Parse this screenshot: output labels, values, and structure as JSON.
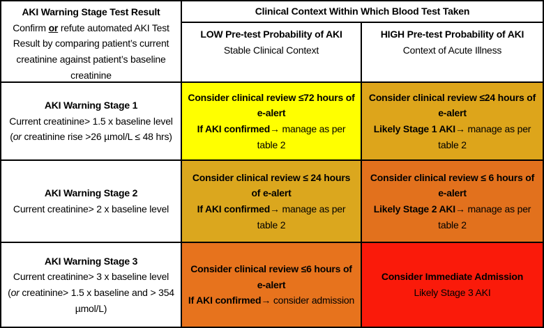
{
  "colors": {
    "border": "#000000",
    "text": "#000000",
    "header_bg": "#FFFFFF"
  },
  "header": {
    "left": {
      "title": "AKI Warning Stage Test Result",
      "desc_pre": "Confirm ",
      "desc_or": "or",
      "desc_post": " refute automated AKI Test Result by comparing patient’s current creatinine against patient’s baseline creatinine"
    },
    "context_title": "Clinical Context Within Which Blood Test Taken",
    "low": {
      "title": "LOW Pre-test Probability of AKI",
      "subtitle": "Stable Clinical Context"
    },
    "high": {
      "title": "HIGH Pre-test Probability of AKI",
      "subtitle": "Context of Acute Illness"
    }
  },
  "rows": [
    {
      "stage": {
        "title": "AKI Warning Stage 1",
        "line1": "Current creatinine> 1.5 x baseline level",
        "paren_open": "(",
        "paren_or": "or",
        "paren_rest": " creatinine rise >26 µmol/L ≤ 48 hrs)"
      },
      "low": {
        "bg": "#FFFF00",
        "line1": "Consider clinical review ≤72 hours of e-alert",
        "lead": "If AKI confirmed→",
        "rest": " manage as per table 2"
      },
      "high": {
        "bg": "#DDA51B",
        "line1": "Consider clinical review ≤24 hours of e-alert",
        "lead": "Likely Stage 1 AKI→",
        "rest": " manage as per table 2"
      }
    },
    {
      "stage": {
        "title": "AKI Warning Stage 2",
        "line1": "Current creatinine> 2 x baseline level"
      },
      "low": {
        "bg": "#DBA71E",
        "line1": "Consider clinical review ≤ 24 hours of e-alert",
        "lead": "If AKI confirmed→",
        "rest": " manage as per table 2"
      },
      "high": {
        "bg": "#E2711D",
        "line1": "Consider clinical review ≤ 6 hours of e-alert",
        "lead": "Likely Stage 2 AKI→",
        "rest": " manage as per table 2"
      }
    },
    {
      "stage": {
        "title": "AKI Warning Stage 3",
        "line1": "Current creatinine> 3 x baseline level",
        "paren_open": "(",
        "paren_or": "or",
        "paren_rest": " creatinine> 1.5 x baseline and > 354 µmol/L)"
      },
      "low": {
        "bg": "#E7731D",
        "line1": "Consider clinical review ≤6 hours of e-alert",
        "lead": "If AKI confirmed→",
        "rest": " consider admission"
      },
      "high": {
        "bg": "#FA1A0A",
        "line1": "Consider Immediate Admission",
        "line2": "Likely Stage 3 AKI"
      }
    }
  ]
}
